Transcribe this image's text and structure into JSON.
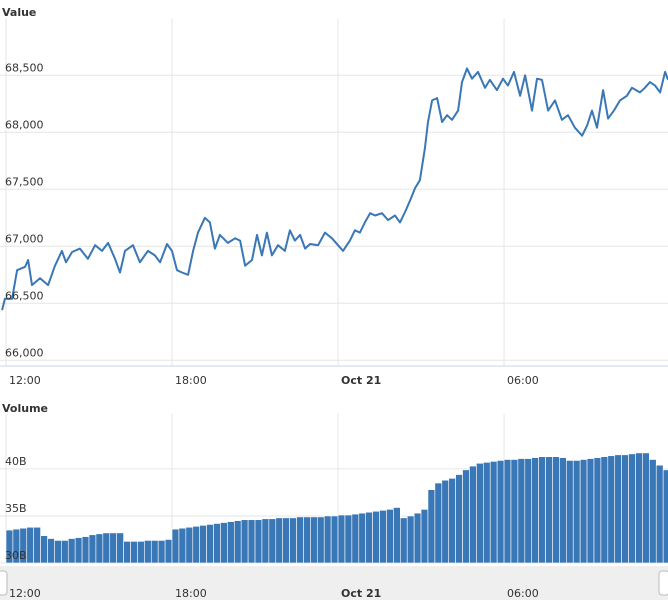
{
  "chart_data": [
    {
      "type": "line",
      "title": "Value",
      "color": "#3a77b5",
      "grid": true,
      "xlim": [
        -0.217,
        23.925
      ],
      "xticks": [
        {
          "value": 0,
          "label": "12:00"
        },
        {
          "value": 6,
          "label": "18:00"
        },
        {
          "value": 12,
          "label": "Oct 21"
        },
        {
          "value": 18,
          "label": "06:00"
        }
      ],
      "ylim": [
        65950,
        68950
      ],
      "yticks": [
        {
          "value": 66000,
          "label": "66,000"
        },
        {
          "value": 66500,
          "label": "66,500"
        },
        {
          "value": 67000,
          "label": "67,000"
        },
        {
          "value": 67500,
          "label": "67,500"
        },
        {
          "value": 68000,
          "label": "68,000"
        },
        {
          "value": 68500,
          "label": "68,500"
        }
      ],
      "x": [
        -0.14,
        -0.04,
        0.22,
        0.4,
        0.69,
        0.8,
        0.94,
        1.23,
        1.52,
        1.77,
        2.02,
        2.17,
        2.39,
        2.67,
        2.96,
        3.22,
        3.47,
        3.69,
        3.94,
        4.12,
        4.3,
        4.59,
        4.84,
        5.13,
        5.38,
        5.57,
        5.82,
        6,
        6.18,
        6.36,
        6.58,
        6.76,
        6.94,
        7.19,
        7.37,
        7.55,
        7.73,
        8.02,
        8.28,
        8.46,
        8.64,
        8.89,
        9.07,
        9.25,
        9.43,
        9.61,
        9.83,
        10.08,
        10.26,
        10.44,
        10.63,
        10.81,
        10.99,
        11.28,
        11.53,
        11.78,
        12,
        12.18,
        12.43,
        12.61,
        12.79,
        12.97,
        13.16,
        13.34,
        13.59,
        13.81,
        14.06,
        14.24,
        14.42,
        14.6,
        14.78,
        14.96,
        15.14,
        15.25,
        15.4,
        15.58,
        15.76,
        15.94,
        16.12,
        16.34,
        16.48,
        16.66,
        16.84,
        17.06,
        17.31,
        17.49,
        17.74,
        17.96,
        18.14,
        18.36,
        18.58,
        18.76,
        19.01,
        19.19,
        19.37,
        19.59,
        19.84,
        20.09,
        20.31,
        20.56,
        20.82,
        21,
        21.18,
        21.36,
        21.58,
        21.76,
        21.97,
        22.19,
        22.44,
        22.62,
        22.91,
        23.09,
        23.27,
        23.46,
        23.64,
        23.82,
        23.93
      ],
      "values": [
        66440,
        66540,
        66540,
        66790,
        66820,
        66880,
        66660,
        66720,
        66660,
        66830,
        66960,
        66860,
        66950,
        66980,
        66890,
        67010,
        66960,
        67030,
        66890,
        66770,
        66960,
        67010,
        66860,
        66960,
        66920,
        66860,
        67020,
        66960,
        66790,
        66770,
        66750,
        66960,
        67120,
        67250,
        67210,
        66980,
        67100,
        67030,
        67070,
        67050,
        66830,
        66880,
        67100,
        66920,
        67120,
        66920,
        67010,
        66960,
        67140,
        67050,
        67100,
        66980,
        67020,
        67010,
        67120,
        67070,
        67010,
        66960,
        67050,
        67140,
        67120,
        67210,
        67290,
        67270,
        67290,
        67230,
        67270,
        67210,
        67300,
        67400,
        67510,
        67580,
        67860,
        68090,
        68280,
        68300,
        68090,
        68150,
        68110,
        68190,
        68440,
        68560,
        68470,
        68530,
        68390,
        68460,
        68370,
        68470,
        68410,
        68530,
        68320,
        68500,
        68190,
        68470,
        68460,
        68190,
        68280,
        68110,
        68150,
        68040,
        67970,
        68060,
        68190,
        68040,
        68370,
        68120,
        68190,
        68280,
        68320,
        68390,
        68350,
        68390,
        68440,
        68410,
        68350,
        68530,
        68460
      ]
    },
    {
      "type": "bar",
      "title": "Volume",
      "color": "#3a77b7",
      "grid": true,
      "xlim": [
        -0.217,
        23.925
      ],
      "ylim": [
        30,
        45.2
      ],
      "yticks": [
        {
          "value": 30,
          "label": "30B"
        },
        {
          "value": 35,
          "label": "35B"
        },
        {
          "value": 40,
          "label": "40B"
        }
      ],
      "x": [
        0,
        0.25,
        0.5,
        0.75,
        1,
        1.25,
        1.5,
        1.75,
        2,
        2.25,
        2.5,
        2.75,
        3,
        3.25,
        3.5,
        3.75,
        4,
        4.25,
        4.5,
        4.75,
        5,
        5.25,
        5.5,
        5.75,
        6,
        6.25,
        6.5,
        6.75,
        7,
        7.25,
        7.5,
        7.75,
        8,
        8.25,
        8.5,
        8.75,
        9,
        9.25,
        9.5,
        9.75,
        10,
        10.25,
        10.5,
        10.75,
        11,
        11.25,
        11.5,
        11.75,
        12,
        12.25,
        12.5,
        12.75,
        13,
        13.25,
        13.5,
        13.75,
        14,
        14.25,
        14.5,
        14.75,
        15,
        15.25,
        15.5,
        15.75,
        16,
        16.25,
        16.5,
        16.75,
        17,
        17.25,
        17.5,
        17.75,
        18,
        18.25,
        18.5,
        18.75,
        19,
        19.25,
        19.5,
        19.75,
        20,
        20.25,
        20.5,
        20.75,
        21,
        21.25,
        21.5,
        21.75,
        22,
        22.25,
        22.5,
        22.75,
        23,
        23.25,
        23.5,
        23.75
      ],
      "values": [
        33.5,
        33.6,
        33.7,
        33.8,
        33.8,
        32.9,
        32.6,
        32.4,
        32.4,
        32.6,
        32.7,
        32.8,
        33.0,
        33.1,
        33.2,
        33.2,
        33.2,
        32.3,
        32.3,
        32.3,
        32.4,
        32.4,
        32.4,
        32.5,
        33.6,
        33.7,
        33.8,
        33.9,
        34.0,
        34.1,
        34.2,
        34.3,
        34.4,
        34.5,
        34.6,
        34.6,
        34.6,
        34.7,
        34.7,
        34.8,
        34.8,
        34.8,
        34.9,
        34.9,
        34.9,
        34.9,
        35.0,
        35.0,
        35.1,
        35.1,
        35.2,
        35.3,
        35.4,
        35.5,
        35.6,
        35.7,
        35.9,
        34.8,
        35.0,
        35.3,
        35.7,
        37.8,
        38.5,
        38.8,
        39.0,
        39.4,
        39.9,
        40.3,
        40.6,
        40.7,
        40.8,
        40.9,
        41.0,
        41.0,
        41.1,
        41.1,
        41.2,
        41.3,
        41.3,
        41.3,
        41.2,
        40.9,
        40.9,
        41.0,
        41.1,
        41.2,
        41.3,
        41.4,
        41.5,
        41.5,
        41.6,
        41.7,
        41.7,
        41.0,
        40.4,
        39.9
      ]
    }
  ]
}
